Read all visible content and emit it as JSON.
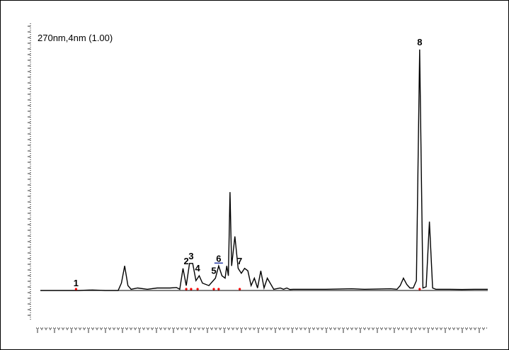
{
  "chart_data": {
    "type": "line",
    "detector_label": "270nm,4nm (1.00)",
    "xlabel": "",
    "ylabel": "",
    "grid": false,
    "x": [
      0,
      4,
      8,
      12,
      16,
      20,
      24,
      25,
      26,
      27,
      28,
      30,
      33,
      36,
      40,
      42,
      43,
      44,
      45,
      46,
      47,
      48,
      49,
      50,
      52,
      54,
      55,
      56,
      57,
      57.5,
      58,
      58.5,
      59,
      60,
      61,
      62,
      63,
      64,
      65,
      66,
      67,
      68,
      69,
      70,
      72,
      74,
      75,
      76,
      77,
      78,
      80,
      84,
      88,
      92,
      96,
      100,
      104,
      108,
      110,
      111,
      112,
      113,
      114,
      115,
      116,
      117,
      118,
      119,
      120,
      121,
      122,
      124,
      126,
      130,
      134,
      138
    ],
    "y": [
      0,
      0,
      0,
      0,
      0.002,
      0,
      0,
      0.03,
      0.1,
      0.02,
      0.005,
      0.01,
      0.005,
      0.01,
      0.01,
      0.012,
      0.005,
      0.09,
      0.02,
      0.11,
      0.11,
      0.04,
      0.06,
      0.03,
      0.02,
      0.05,
      0.1,
      0.06,
      0.05,
      0.1,
      0.06,
      0.4,
      0.1,
      0.22,
      0.09,
      0.07,
      0.09,
      0.08,
      0.02,
      0.05,
      0.01,
      0.08,
      0.01,
      0.05,
      0.005,
      0.01,
      0.005,
      0.01,
      0.004,
      0.005,
      0.005,
      0.005,
      0.005,
      0.006,
      0.007,
      0.005,
      0.006,
      0.007,
      0.005,
      0.02,
      0.05,
      0.025,
      0.01,
      0.01,
      0.04,
      0.98,
      0.01,
      0.015,
      0.28,
      0.01,
      0.005,
      0.005,
      0.005,
      0.004,
      0.005,
      0.005
    ],
    "peaks": [
      {
        "label": "1",
        "x": 11.0,
        "y": 0.0
      },
      {
        "label": "2",
        "x": 45.0,
        "y": 0.09
      },
      {
        "label": "3",
        "x": 46.5,
        "y": 0.11
      },
      {
        "label": "4",
        "x": 48.5,
        "y": 0.06
      },
      {
        "label": "5",
        "x": 53.5,
        "y": 0.05
      },
      {
        "label": "6",
        "x": 55.0,
        "y": 0.1
      },
      {
        "label": "7",
        "x": 61.5,
        "y": 0.09
      },
      {
        "label": "8",
        "x": 117.0,
        "y": 0.98
      }
    ],
    "colors": {
      "trace": "#000000",
      "peak_label": "#000000",
      "marker": "#ff0000",
      "highlight": "#1a2fa0"
    }
  }
}
